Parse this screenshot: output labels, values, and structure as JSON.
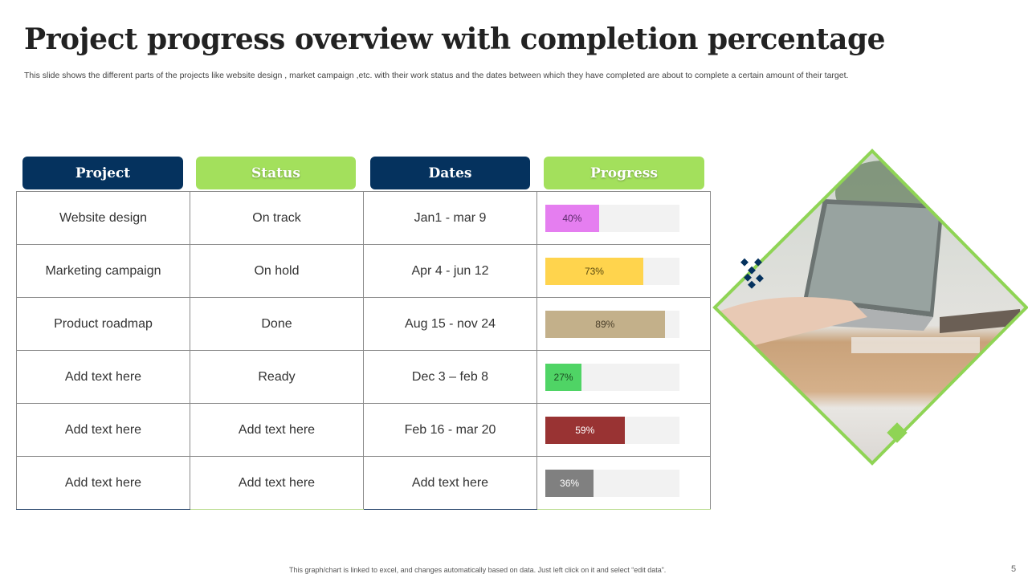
{
  "title": "Project progress overview with completion percentage",
  "subtitle": "This slide shows the different parts of the projects like website design , market campaign ,etc. with their work status and the dates between which they have completed are about to complete a certain amount of their target.",
  "headers": [
    "Project",
    "Status",
    "Dates",
    "Progress"
  ],
  "rows": [
    {
      "project": "Website design",
      "status": "On track",
      "dates": "Jan1 - mar 9",
      "progress": 40,
      "progress_label": "40%",
      "color": "#e57ef0",
      "text_color": "#5a2a6a"
    },
    {
      "project": "Marketing campaign",
      "status": "On hold",
      "dates": "Apr 4 - jun 12",
      "progress": 73,
      "progress_label": "73%",
      "color": "#ffd44d",
      "text_color": "#5a4a10"
    },
    {
      "project": "Product roadmap",
      "status": "Done",
      "dates": "Aug 15 - nov 24",
      "progress": 89,
      "progress_label": "89%",
      "color": "#c3b08a",
      "text_color": "#4a3f2a"
    },
    {
      "project": "Add text here",
      "status": "Ready",
      "dates": "Dec 3 – feb 8",
      "progress": 27,
      "progress_label": "27%",
      "color": "#4fd465",
      "text_color": "#1c4d22"
    },
    {
      "project": "Add text here",
      "status": "Add text here",
      "dates": "Feb 16 - mar 20",
      "progress": 59,
      "progress_label": "59%",
      "color": "#993333",
      "text_color": "#ffffff"
    },
    {
      "project": "Add text here",
      "status": "Add text here",
      "dates": "Add text here",
      "progress": 36,
      "progress_label": "36%",
      "color": "#808080",
      "text_color": "#ffffff"
    }
  ],
  "colors": {
    "navy": "#05325e",
    "green": "#a3e05c"
  },
  "image": {
    "icon": "laptop-photo"
  },
  "footer": "This graph/chart is linked to excel, and changes automatically based on data. Just left click on it and select “edit data”.",
  "page_number": "5"
}
